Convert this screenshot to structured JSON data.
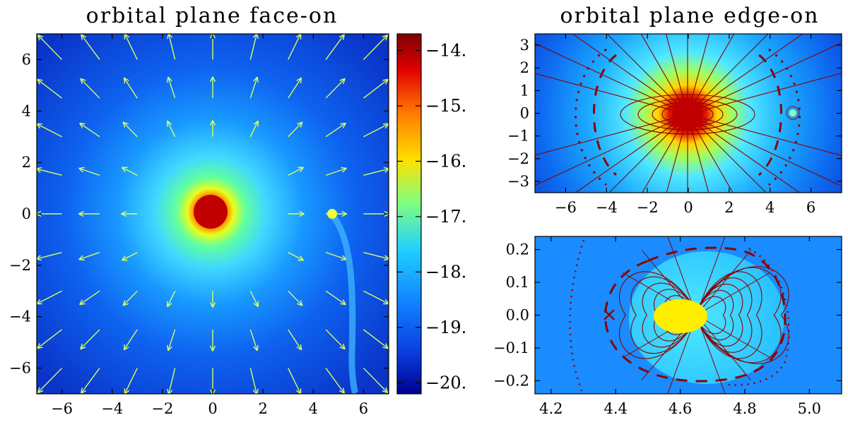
{
  "chart_data": [
    {
      "type": "heatmap",
      "title": "orbital plane face-on",
      "xlim": [
        -7,
        7
      ],
      "ylim": [
        -7,
        7
      ],
      "x_ticks": [
        "−6",
        "−4",
        "−2",
        "0",
        "2",
        "4",
        "6"
      ],
      "y_ticks": [
        "6",
        "4",
        "2",
        "0",
        "−2",
        "−4",
        "−6"
      ],
      "x_tick_values": [
        -6,
        -4,
        -2,
        0,
        2,
        4,
        6
      ],
      "y_tick_values": [
        6,
        4,
        2,
        0,
        -2,
        -4,
        -6
      ],
      "central_source": [
        0,
        0
      ],
      "companion": [
        4.8,
        0.05
      ],
      "arrow_grid": [
        -6,
        -4.5,
        -3,
        -1.5,
        0,
        1.5,
        3,
        4.5,
        6
      ],
      "arrow_color": "#d8ff60",
      "colorbar": {
        "ticks": [
          "−14.",
          "−15.",
          "−16.",
          "−17.",
          "−18.",
          "−19.",
          "−20."
        ],
        "tick_values": [
          -14,
          -15,
          -16,
          -17,
          -18,
          -19,
          -20
        ],
        "range": [
          -20.2,
          -13.7
        ]
      }
    },
    {
      "type": "heatmap",
      "title": "orbital plane edge-on",
      "xlim": [
        -7.5,
        7.5
      ],
      "ylim": [
        -3.5,
        3.5
      ],
      "x_ticks": [
        "−6",
        "−4",
        "−2",
        "0",
        "2",
        "4",
        "6"
      ],
      "y_ticks": [
        "3",
        "2",
        "1",
        "0",
        "−1",
        "−2",
        "−3"
      ],
      "x_tick_values": [
        -6,
        -4,
        -2,
        0,
        2,
        4,
        6
      ],
      "y_tick_values": [
        3,
        2,
        1,
        0,
        -1,
        -2,
        -3
      ],
      "central_source": [
        0,
        0
      ],
      "companion": [
        4.7,
        0.05
      ],
      "contour_color": "#8b0000"
    },
    {
      "type": "heatmap",
      "title": "",
      "xlim": [
        4.15,
        5.1
      ],
      "ylim": [
        -0.24,
        0.24
      ],
      "x_ticks": [
        "4.2",
        "4.4",
        "4.6",
        "4.8",
        "5.0"
      ],
      "y_ticks": [
        "0.2",
        "0.1",
        "0.0",
        "−0.1",
        "−0.2"
      ],
      "x_tick_values": [
        4.2,
        4.4,
        4.6,
        4.8,
        5.0
      ],
      "y_tick_values": [
        0.2,
        0.1,
        0.0,
        -0.1,
        -0.2
      ],
      "center": [
        4.65,
        0.0
      ],
      "marker": {
        "symbol": "×",
        "x": 4.38,
        "y": 0.0
      },
      "contour_color": "#8b0000"
    }
  ],
  "colors": {
    "background": "#0a3cd8",
    "core": "#c80000",
    "highlight": "#ffee00",
    "contour": "#8b0000"
  }
}
